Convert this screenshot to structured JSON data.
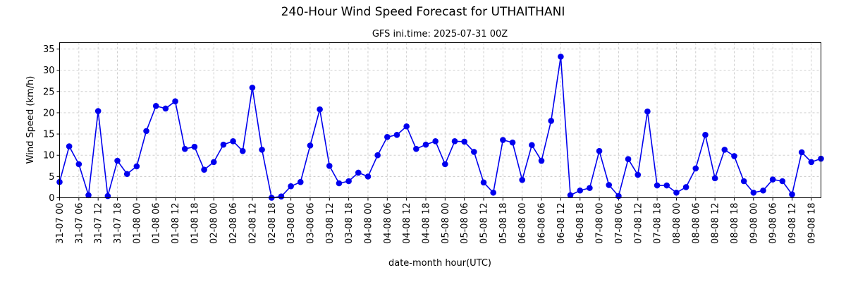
{
  "chart_data": {
    "type": "line",
    "title": "240-Hour Wind Speed Forecast for UTHAITHANI",
    "subtitle": "GFS ini.time: 2025-07-31 00Z",
    "xlabel": "date-month hour(UTC)",
    "ylabel": "Wind Speed (km/h)",
    "ylim": [
      0,
      36.5
    ],
    "yticks": [
      0,
      5,
      10,
      15,
      20,
      25,
      30,
      35
    ],
    "grid": true,
    "color": "#0000ee",
    "x_start": "31-07 00",
    "x_step_hours": 3,
    "xtick_labels": [
      "31-07 00",
      "31-07 06",
      "31-07 12",
      "31-07 18",
      "01-08 00",
      "01-08 06",
      "01-08 12",
      "01-08 18",
      "02-08 00",
      "02-08 06",
      "02-08 12",
      "02-08 18",
      "03-08 00",
      "03-08 06",
      "03-08 12",
      "03-08 18",
      "04-08 00",
      "04-08 06",
      "04-08 12",
      "04-08 18",
      "05-08 00",
      "05-08 06",
      "05-08 12",
      "05-08 18",
      "06-08 00",
      "06-08 06",
      "06-08 12",
      "06-08 18",
      "07-08 00",
      "07-08 06",
      "07-08 12",
      "07-08 18",
      "08-08 00",
      "08-08 06",
      "08-08 12",
      "08-08 18",
      "09-08 00",
      "09-08 06",
      "09-08 12",
      "09-08 18"
    ],
    "values": [
      3.7,
      12.1,
      7.9,
      0.6,
      20.4,
      0.4,
      8.7,
      5.6,
      7.4,
      15.7,
      21.6,
      21.0,
      22.7,
      11.5,
      12.0,
      6.6,
      8.4,
      12.5,
      13.3,
      11.0,
      25.9,
      11.3,
      0.0,
      0.3,
      2.7,
      3.7,
      12.3,
      20.8,
      7.5,
      3.4,
      3.9,
      5.9,
      5.0,
      10.0,
      14.3,
      14.8,
      16.8,
      11.5,
      12.5,
      13.3,
      7.9,
      13.3,
      13.2,
      10.8,
      3.6,
      1.2,
      13.6,
      13.0,
      4.2,
      12.4,
      8.7,
      18.1,
      33.2,
      0.6,
      1.7,
      2.3,
      11.0,
      3.0,
      0.4,
      9.1,
      5.4,
      20.3,
      2.9,
      2.9,
      1.2,
      2.5,
      6.9,
      14.8,
      4.6,
      11.3,
      9.8,
      3.9,
      1.2,
      1.7,
      4.3,
      3.9,
      0.8,
      10.7,
      8.4,
      9.2
    ]
  }
}
